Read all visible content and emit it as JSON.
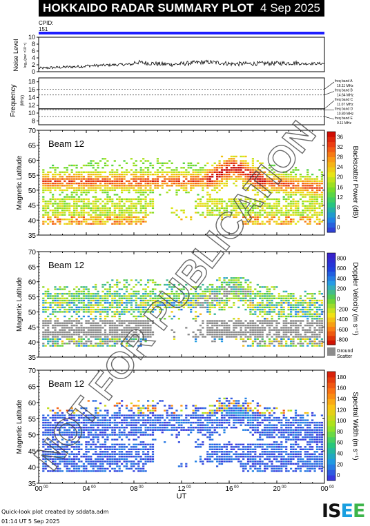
{
  "header": {
    "title": "HOKKAIDO RADAR SUMMARY PLOT",
    "date": "4 Sep 2025"
  },
  "cpid": {
    "label": "CPID:",
    "value": "151"
  },
  "noise_panel": {
    "ylabel": "Noise Level",
    "ylabel_sub": "log₁₀(pwr ×10⁻⁶)",
    "ticks": [
      "0",
      "2",
      "4",
      "6",
      "8",
      "10"
    ]
  },
  "freq_panel": {
    "ylabel": "Frequency",
    "unit": "(MHz)",
    "ticks": [
      "8",
      "10",
      "12",
      "14",
      "16",
      "18"
    ],
    "bands": [
      {
        "label": "freq band A",
        "value": "16.11 MHz"
      },
      {
        "label": "freq band B",
        "value": "14.64 MHz"
      },
      {
        "label": "freq band C",
        "value": "11.07 MHz"
      },
      {
        "label": "freq band D",
        "value": "10.80 MHz"
      },
      {
        "label": "freq band E",
        "value": "9.11 MHz"
      }
    ]
  },
  "panels": [
    {
      "beam": "Beam 12",
      "ylabel": "Magnetic Latitude",
      "cbar_label": "Backscatter Power (dB)",
      "cbar_ticks": [
        "0",
        "4",
        "8",
        "12",
        "16",
        "20",
        "24",
        "28",
        "32",
        "36"
      ],
      "colormap": "power"
    },
    {
      "beam": "Beam 12",
      "ylabel": "Magnetic Latitude",
      "cbar_label": "Doppler Velocity (m s⁻¹)",
      "cbar_ticks": [
        "-800",
        "-600",
        "-400",
        "-200",
        "0",
        "200",
        "400",
        "600",
        "800"
      ],
      "colormap": "velocity",
      "ground_label": "Ground",
      "ground_label2": "Scatter"
    },
    {
      "beam": "Beam 12",
      "ylabel": "Magnetic Latitude",
      "cbar_label": "Spectral Width (m s⁻¹)",
      "cbar_ticks": [
        "0",
        "20",
        "40",
        "60",
        "80",
        "100",
        "120",
        "140",
        "160",
        "180"
      ],
      "colormap": "width"
    }
  ],
  "lat_ticks": [
    "35",
    "40",
    "45",
    "50",
    "55",
    "60",
    "65",
    "70"
  ],
  "xaxis": {
    "label": "UT",
    "ticks": [
      "00",
      "04",
      "08",
      "12",
      "16",
      "20",
      "00"
    ],
    "tick_sup": "00"
  },
  "footer": {
    "line1": "Quick-look plot created by sddata.adm",
    "line2": "01:14 UT  5 Sep 2025"
  },
  "logo": "ISEE",
  "watermark": "NOT FOR PUBLICATION",
  "chart_data": {
    "type": "heatmap",
    "x_range_hours": [
      0,
      24
    ],
    "y_range_mlat": [
      35,
      70
    ],
    "noise_range": [
      0,
      10
    ],
    "freq_range_mhz": [
      7,
      19
    ],
    "freq_bands_mhz": [
      16.11,
      14.64,
      11.07,
      10.8,
      9.11
    ],
    "power_range_db": [
      0,
      40
    ],
    "velocity_range": [
      -900,
      900
    ],
    "width_range": [
      0,
      190
    ]
  }
}
